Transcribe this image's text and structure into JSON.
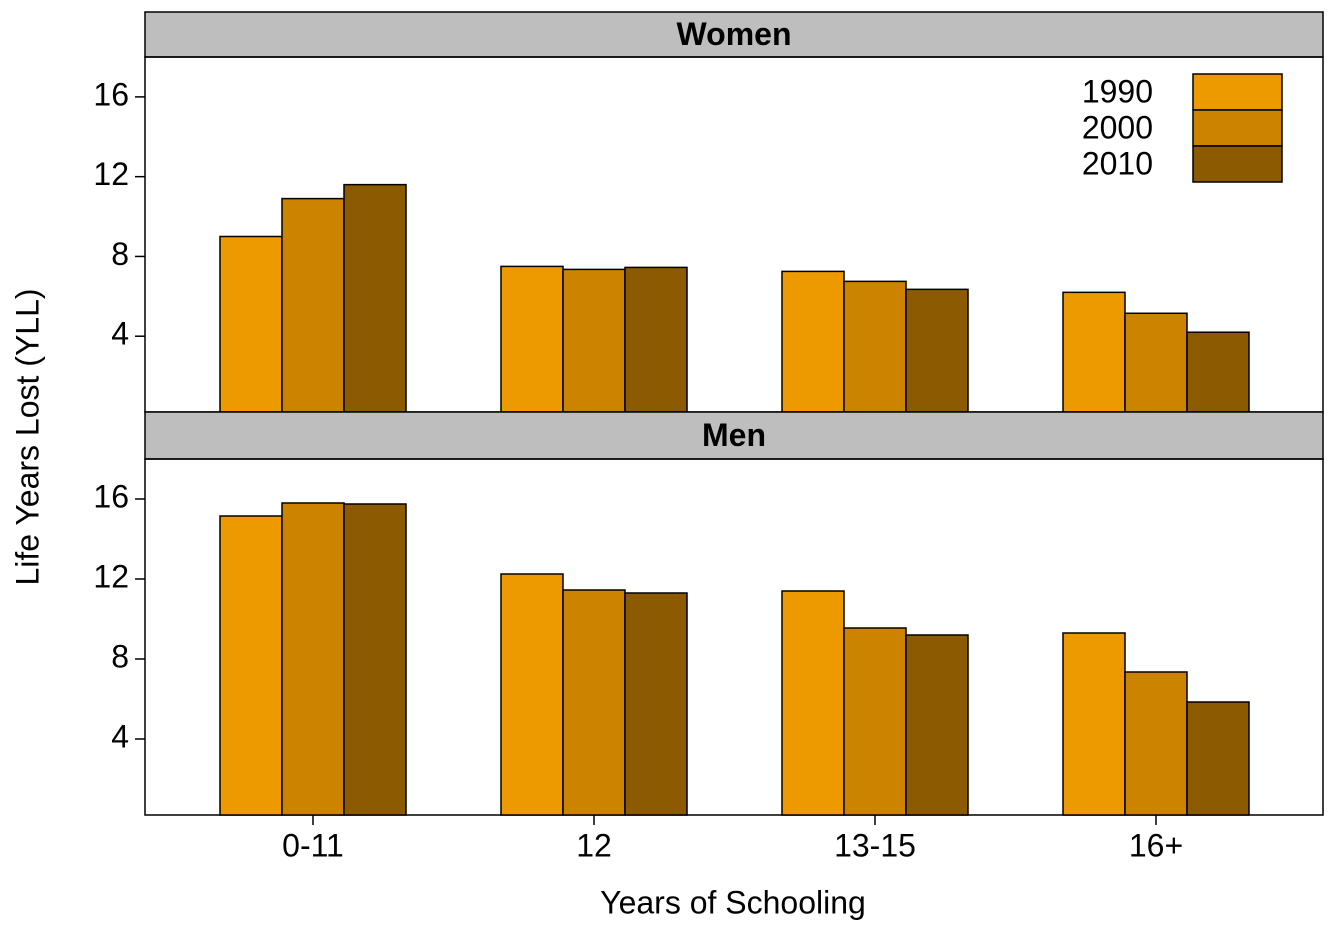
{
  "chart_data": [
    {
      "type": "bar",
      "title": "Women",
      "y_label": "Life Years Lost (YLL)",
      "legend": "top-right",
      "series": [
        {
          "name": "1990",
          "color": "#ec9a00",
          "values": [
            9.0,
            7.5,
            7.25,
            6.2
          ]
        },
        {
          "name": "2000",
          "color": "#cc8400",
          "values": [
            10.9,
            7.35,
            6.75,
            5.15
          ]
        },
        {
          "name": "2010",
          "color": "#8c5a00",
          "values": [
            11.6,
            7.45,
            6.35,
            4.2
          ]
        }
      ],
      "ylim": [
        0.2,
        18
      ],
      "yticks": [
        4,
        8,
        12,
        16
      ]
    },
    {
      "type": "bar",
      "title": "Men",
      "x_label": "Years of Schooling",
      "categories": [
        "0-11",
        "12",
        "13-15",
        "16+"
      ],
      "series": [
        {
          "color": "#ec9a00",
          "values": [
            15.15,
            12.25,
            11.4,
            9.3
          ]
        },
        {
          "color": "#cc8400",
          "values": [
            15.8,
            11.45,
            9.55,
            7.35
          ]
        },
        {
          "color": "#8c5a00",
          "values": [
            15.75,
            11.3,
            9.2,
            5.85
          ]
        }
      ],
      "ylim": [
        0.2,
        18
      ],
      "yticks": [
        4,
        8,
        12,
        16
      ]
    }
  ]
}
